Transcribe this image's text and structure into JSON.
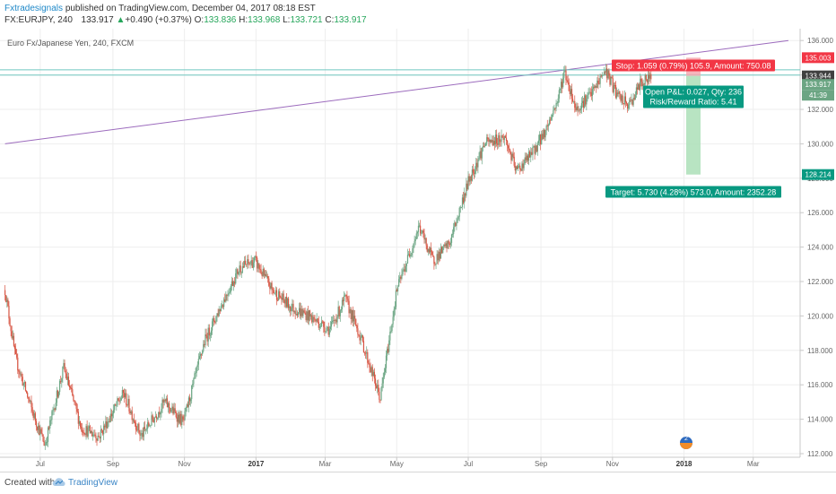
{
  "header": {
    "author": "Fxtradesignals",
    "published": "published on TradingView.com, December 04, 2017 08:18 EST",
    "symbol": "FX:EURJPY, 240",
    "price": "133.917",
    "change_arrow": "▲",
    "change": "+0.490 (+0.37%)",
    "o_label": "O:",
    "o": "133.836",
    "h_label": "H:",
    "h": "133.968",
    "l_label": "L:",
    "l": "133.721",
    "c_label": "C:",
    "c": "133.917"
  },
  "footer": {
    "created": "Created with",
    "brand": "TradingView"
  },
  "chart_data": {
    "type": "candlestick",
    "instrument_title": "Euro Fx/Japanese Yen, 240, FXCM",
    "x_tick_labels": [
      "Jul",
      "Sep",
      "Nov",
      "2017",
      "Mar",
      "May",
      "Jul",
      "Sep",
      "Nov",
      "2018",
      "Mar"
    ],
    "y_tick_labels": [
      "112.000",
      "114.000",
      "116.000",
      "118.000",
      "120.000",
      "122.000",
      "124.000",
      "126.000",
      "128.000",
      "130.000",
      "132.000",
      "134.000",
      "136.000"
    ],
    "ylim": [
      112,
      136.6
    ],
    "grid": true,
    "colors": {
      "up": "#6ba583",
      "down": "#d75442",
      "trendline": "#9c6bbd",
      "hline": "#6fc8c0",
      "stop": "#f23645",
      "target": "#089981"
    },
    "approx_trend_path": [
      {
        "date": "2016-06-01",
        "price": 121.5
      },
      {
        "date": "2016-06-10",
        "price": 117.5
      },
      {
        "date": "2016-06-24",
        "price": 114.5
      },
      {
        "date": "2016-07-05",
        "price": 112.5
      },
      {
        "date": "2016-07-21",
        "price": 117.0
      },
      {
        "date": "2016-08-05",
        "price": 113.5
      },
      {
        "date": "2016-08-20",
        "price": 113.0
      },
      {
        "date": "2016-09-10",
        "price": 115.5
      },
      {
        "date": "2016-09-25",
        "price": 113.0
      },
      {
        "date": "2016-10-15",
        "price": 115.0
      },
      {
        "date": "2016-10-31",
        "price": 113.8
      },
      {
        "date": "2016-11-18",
        "price": 118.5
      },
      {
        "date": "2016-12-05",
        "price": 121.0
      },
      {
        "date": "2016-12-18",
        "price": 122.8
      },
      {
        "date": "2016-12-31",
        "price": 123.2
      },
      {
        "date": "2017-01-15",
        "price": 121.5
      },
      {
        "date": "2017-01-31",
        "price": 120.5
      },
      {
        "date": "2017-02-15",
        "price": 120.0
      },
      {
        "date": "2017-03-05",
        "price": 119.2
      },
      {
        "date": "2017-03-18",
        "price": 121.0
      },
      {
        "date": "2017-03-31",
        "price": 118.8
      },
      {
        "date": "2017-04-17",
        "price": 115.2
      },
      {
        "date": "2017-05-01",
        "price": 121.5
      },
      {
        "date": "2017-05-20",
        "price": 125.2
      },
      {
        "date": "2017-06-01",
        "price": 123.2
      },
      {
        "date": "2017-06-15",
        "price": 124.2
      },
      {
        "date": "2017-07-01",
        "price": 127.8
      },
      {
        "date": "2017-07-15",
        "price": 130.0
      },
      {
        "date": "2017-08-01",
        "price": 130.4
      },
      {
        "date": "2017-08-11",
        "price": 128.4
      },
      {
        "date": "2017-08-25",
        "price": 129.5
      },
      {
        "date": "2017-09-05",
        "price": 130.8
      },
      {
        "date": "2017-09-15",
        "price": 132.5
      },
      {
        "date": "2017-09-21",
        "price": 134.2
      },
      {
        "date": "2017-10-01",
        "price": 132.0
      },
      {
        "date": "2017-10-15",
        "price": 133.0
      },
      {
        "date": "2017-10-26",
        "price": 134.3
      },
      {
        "date": "2017-11-05",
        "price": 132.8
      },
      {
        "date": "2017-11-15",
        "price": 132.2
      },
      {
        "date": "2017-11-25",
        "price": 133.5
      },
      {
        "date": "2017-12-04",
        "price": 133.9
      }
    ],
    "trendline": {
      "from": {
        "date": "2016-06-01",
        "price": 130.0
      },
      "to": {
        "date": "2018-03-31",
        "price": 136.0
      }
    },
    "horizontal_lines": [
      134.3,
      133.99
    ],
    "position": {
      "entry": 133.944,
      "stop": 135.003,
      "target": 128.214,
      "last": 133.917,
      "stop_label": "Stop: 1.059 (0.79%) 105.9, Amount: 750.08",
      "target_label": "Target: 5.730 (4.28%) 573.0, Amount: 2352.28",
      "pnl_label": "Open P&L: 0.027, Qty: 236",
      "rr_label": "Risk/Reward Ratio: 5.41",
      "countdown": "41:39"
    },
    "price_badges": [
      "135.003",
      "133.944",
      "133.917",
      "128.214"
    ]
  }
}
